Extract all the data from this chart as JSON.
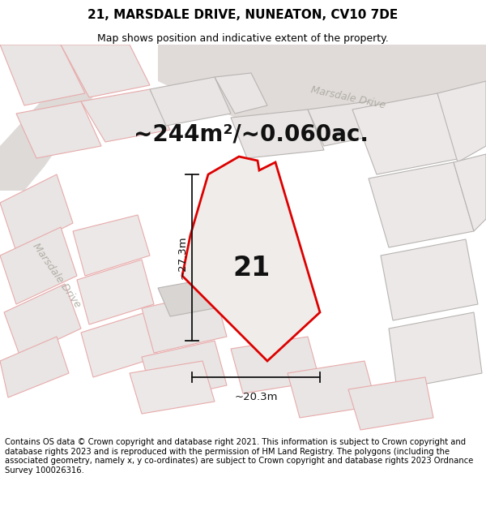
{
  "title": "21, MARSDALE DRIVE, NUNEATON, CV10 7DE",
  "subtitle": "Map shows position and indicative extent of the property.",
  "area_text": "~244m²/~0.060ac.",
  "number_label": "21",
  "dim_horizontal": "~20.3m",
  "dim_vertical": "~27.3m",
  "footer_text": "Contains OS data © Crown copyright and database right 2021. This information is subject to Crown copyright and database rights 2023 and is reproduced with the permission of HM Land Registry. The polygons (including the associated geometry, namely x, y co-ordinates) are subject to Crown copyright and database rights 2023 Ordnance Survey 100026316.",
  "bg_color": "#f5f3f2",
  "road_color": "#e8e5e3",
  "parcel_fill": "#e8e5e4",
  "parcel_edge_light": "#e8aaaa",
  "parcel_edge_gray": "#b8b4b2",
  "red_color": "#dd0000",
  "white_fill": "#f5f3f2",
  "title_fontsize": 11,
  "subtitle_fontsize": 9,
  "area_fontsize": 20,
  "number_fontsize": 24,
  "dim_fontsize": 9.5,
  "footer_fontsize": 7.2
}
